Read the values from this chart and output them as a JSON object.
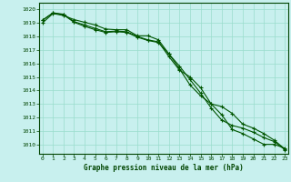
{
  "x": [
    0,
    1,
    2,
    3,
    4,
    5,
    6,
    7,
    8,
    9,
    10,
    11,
    12,
    13,
    14,
    15,
    16,
    17,
    18,
    19,
    20,
    21,
    22,
    23
  ],
  "line1": [
    1019.2,
    1019.75,
    1019.65,
    1019.1,
    1018.85,
    1018.6,
    1018.35,
    1018.4,
    1018.35,
    1018.0,
    1017.75,
    1017.6,
    1016.5,
    1015.5,
    1015.0,
    1014.2,
    1013.0,
    1012.2,
    1011.1,
    1010.8,
    1010.4,
    1010.0,
    1010.0,
    1009.7
  ],
  "line2": [
    1019.2,
    1019.75,
    1019.6,
    1019.05,
    1018.75,
    1018.5,
    1018.3,
    1018.35,
    1018.3,
    1017.95,
    1017.7,
    1017.55,
    1016.7,
    1015.8,
    1014.8,
    1013.8,
    1012.7,
    1011.8,
    1011.4,
    1011.2,
    1010.9,
    1010.5,
    1010.2,
    1009.6
  ],
  "line3": [
    1019.0,
    1019.7,
    1019.55,
    1019.25,
    1019.05,
    1018.85,
    1018.55,
    1018.5,
    1018.5,
    1018.05,
    1018.05,
    1017.75,
    1016.7,
    1015.6,
    1014.4,
    1013.6,
    1013.0,
    1012.8,
    1012.3,
    1011.5,
    1011.2,
    1010.8,
    1010.3,
    1009.65
  ],
  "bg_color": "#c8f0ee",
  "grid_color": "#99ddcc",
  "line_color": "#005500",
  "line_color2": "#226622",
  "line_width": 0.8,
  "marker": "+",
  "marker_size": 3,
  "ylabel_values": [
    1010,
    1011,
    1012,
    1013,
    1014,
    1015,
    1016,
    1017,
    1018,
    1019,
    1020
  ],
  "xlabel_label": "Graphe pression niveau de la mer (hPa)",
  "ylim": [
    1009.3,
    1020.5
  ],
  "xlim": [
    -0.3,
    23.3
  ]
}
